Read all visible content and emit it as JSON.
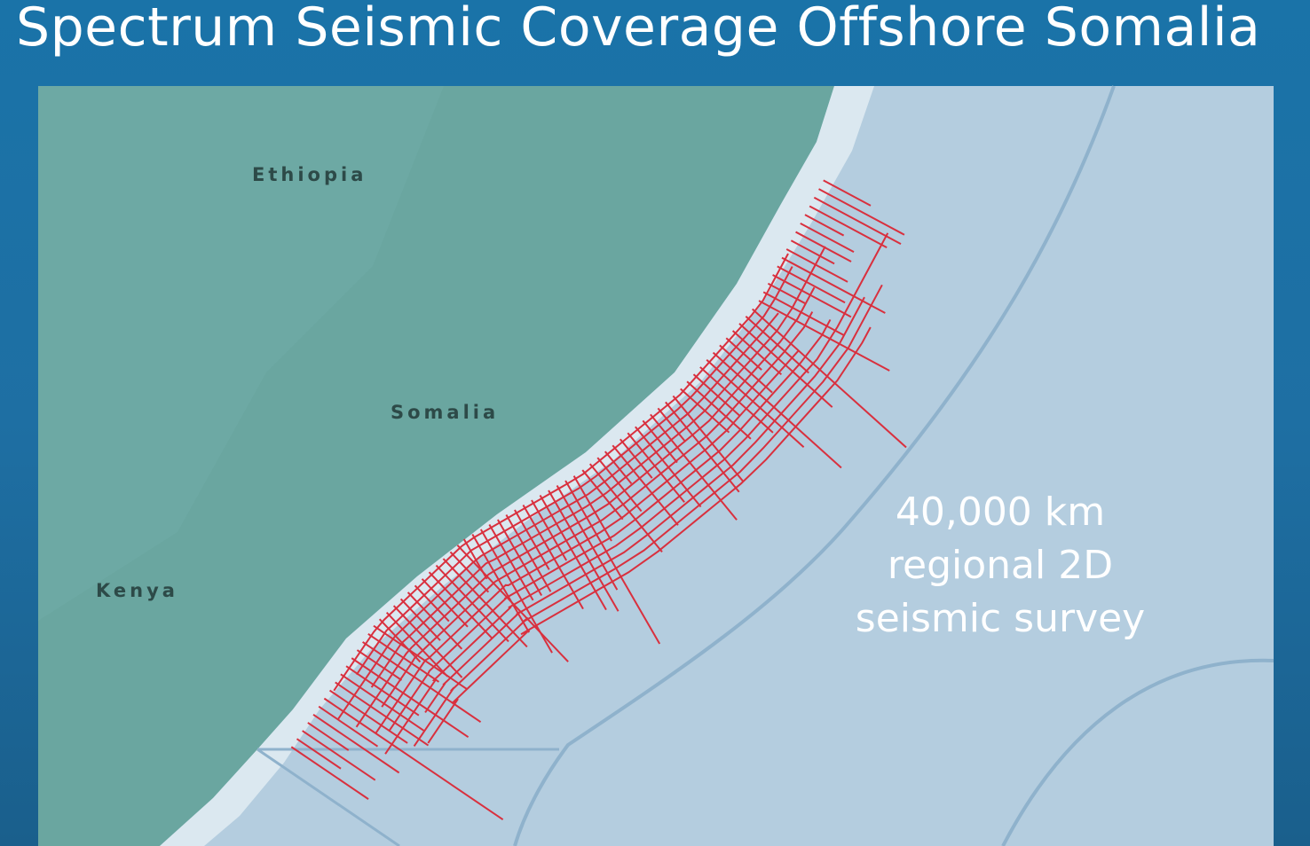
{
  "header": {
    "title": "Spectrum Seismic Coverage Offshore Somalia"
  },
  "map": {
    "labels": [
      "Ethiopia",
      "Somalia",
      "Kenya"
    ],
    "annotation": [
      "40,000 km",
      "regional 2D",
      "seismic survey"
    ]
  }
}
